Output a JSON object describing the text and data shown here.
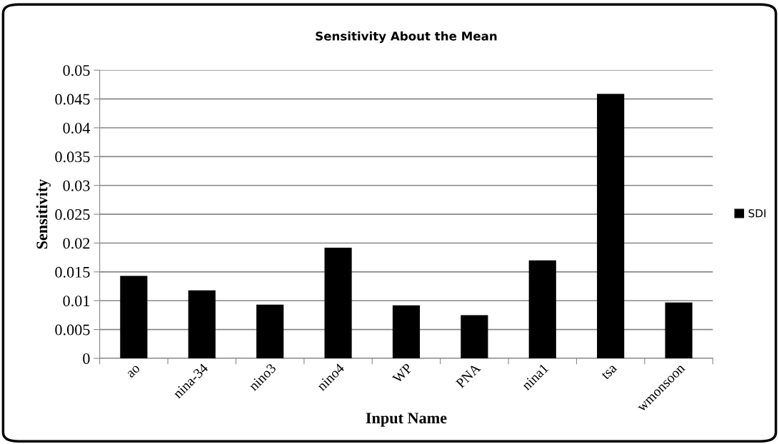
{
  "chart_data": {
    "type": "bar",
    "title": "Sensitivity About the Mean",
    "xlabel": "Input Name",
    "ylabel": "Sensitivity",
    "categories": [
      "ao",
      "nina-34",
      "nino3",
      "nino4",
      "WP",
      "PNA",
      "nina1",
      "tsa",
      "wmonsoon"
    ],
    "series": [
      {
        "name": "SDI",
        "color": "#000000",
        "values": [
          0.0143,
          0.0118,
          0.0093,
          0.0192,
          0.0092,
          0.0075,
          0.017,
          0.0459,
          0.0097
        ]
      }
    ],
    "ylim": [
      0,
      0.05
    ],
    "yticks": [
      0,
      0.005,
      0.01,
      0.015,
      0.02,
      0.025,
      0.03,
      0.035,
      0.04,
      0.045,
      0.05
    ],
    "grid": "y",
    "legend": "right"
  }
}
